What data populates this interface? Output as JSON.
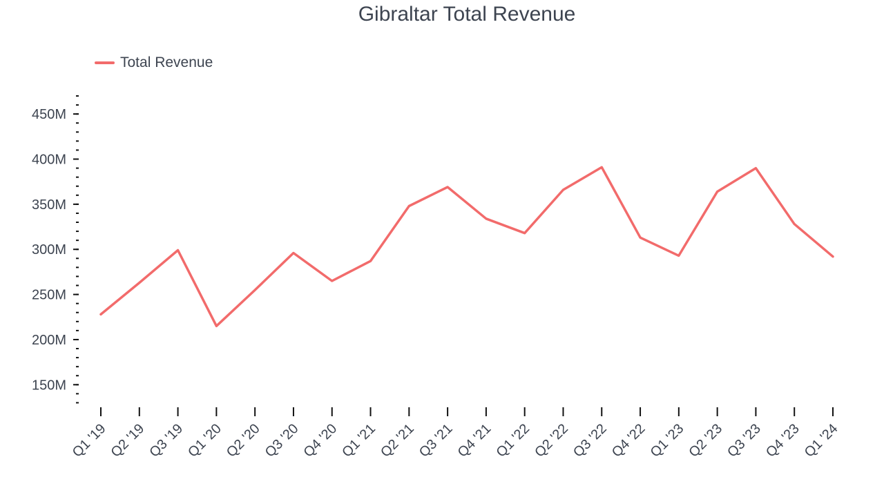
{
  "chart_data": {
    "type": "line",
    "title": "Gibraltar Total Revenue",
    "xlabel": "",
    "ylabel": "",
    "categories": [
      "Q1 '19",
      "Q2 '19",
      "Q3 '19",
      "Q1 '20",
      "Q2 '20",
      "Q3 '20",
      "Q4 '20",
      "Q1 '21",
      "Q2 '21",
      "Q3 '21",
      "Q4 '21",
      "Q1 '22",
      "Q2 '22",
      "Q3 '22",
      "Q4 '22",
      "Q1 '23",
      "Q2 '23",
      "Q3 '23",
      "Q4 '23",
      "Q1 '24"
    ],
    "series": [
      {
        "name": "Total Revenue",
        "color": "#f26b6b",
        "values": [
          228,
          263,
          299,
          215,
          255,
          296,
          265,
          287,
          348,
          369,
          334,
          318,
          366,
          391,
          313,
          293,
          364,
          390,
          328,
          292
        ]
      }
    ],
    "yunit": "M",
    "ylim": [
      125,
      470
    ],
    "yticks": [
      150,
      200,
      250,
      300,
      350,
      400,
      450
    ],
    "ytick_labels": [
      "150M",
      "200M",
      "250M",
      "300M",
      "350M",
      "400M",
      "450M"
    ],
    "minor_step": 10,
    "grid": false,
    "legend": "top-left"
  }
}
